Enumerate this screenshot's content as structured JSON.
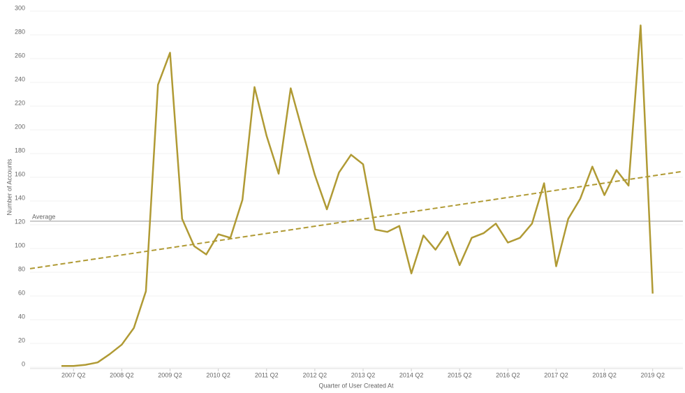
{
  "chart_data": {
    "type": "line",
    "y_axis_label": "Number of Accounts",
    "x_axis_label": "Quarter of User Created At",
    "categories": [
      null,
      "2007 Q2",
      null,
      null,
      null,
      "2008 Q2",
      null,
      null,
      null,
      "2009 Q2",
      null,
      null,
      null,
      "2010 Q2",
      null,
      null,
      null,
      "2011 Q2",
      null,
      null,
      null,
      "2012 Q2",
      null,
      null,
      null,
      "2013 Q2",
      null,
      null,
      null,
      "2014 Q2",
      null,
      null,
      null,
      "2015 Q2",
      null,
      null,
      null,
      "2016 Q2",
      null,
      null,
      null,
      "2017 Q2",
      null,
      null,
      null,
      "2018 Q2",
      null,
      null,
      null,
      "2019 Q2"
    ],
    "series": [
      {
        "name": "Number of Accounts",
        "color": "#b09a34",
        "values": [
          1,
          1,
          2,
          4,
          11,
          19,
          33,
          64,
          238,
          265,
          125,
          102,
          95,
          112,
          109,
          141,
          236,
          195,
          163,
          235,
          198,
          162,
          133,
          164,
          179,
          171,
          116,
          114,
          119,
          79,
          111,
          99,
          114,
          86,
          109,
          113,
          121,
          105,
          109,
          121,
          155,
          85,
          125,
          142,
          169,
          145,
          166,
          153,
          288,
          62
        ]
      }
    ],
    "reference_line": {
      "label": "Average",
      "value": 123
    },
    "trend_line": [
      83,
      165
    ],
    "ylim": [
      0,
      300
    ],
    "yticks": [
      0,
      20,
      40,
      60,
      80,
      100,
      120,
      140,
      160,
      180,
      200,
      220,
      240,
      260,
      280,
      300
    ],
    "grid": true
  }
}
